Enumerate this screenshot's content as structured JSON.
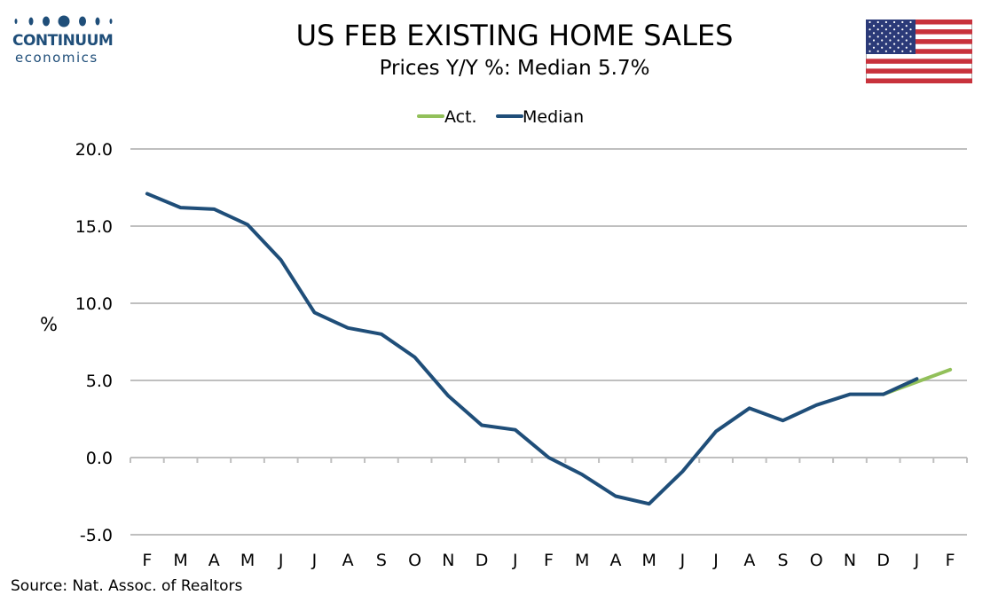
{
  "header": {
    "logo_line1": "CONTINUUM",
    "logo_line2": "economics",
    "flag": "us-flag"
  },
  "footer": {
    "source": "Source: Nat. Assoc. of Realtors"
  },
  "colors": {
    "median": "#1f4e79",
    "actual": "#92c05a",
    "grid": "#bfbfbf",
    "logo": "#1f4e79"
  },
  "chart_data": {
    "type": "line",
    "title": "US FEB EXISTING HOME SALES",
    "subtitle": "Prices Y/Y %: Median 5.7%",
    "ylabel": "%",
    "xlabel": "",
    "ylim": [
      -5,
      20
    ],
    "yticks": [
      "20.0",
      "15.0",
      "10.0",
      "5.0",
      "0.0",
      "-5.0"
    ],
    "ytick_values": [
      20,
      15,
      10,
      5,
      0,
      -5
    ],
    "grid": true,
    "legend_position": "top-center",
    "categories": [
      "F",
      "M",
      "A",
      "M",
      "J",
      "J",
      "A",
      "S",
      "O",
      "N",
      "D",
      "J",
      "F",
      "M",
      "A",
      "M",
      "J",
      "J",
      "A",
      "S",
      "O",
      "N",
      "D",
      "J",
      "F"
    ],
    "series": [
      {
        "name": "Act.",
        "color": "#92c05a",
        "values": [
          null,
          null,
          null,
          null,
          null,
          null,
          null,
          null,
          null,
          null,
          null,
          null,
          null,
          null,
          null,
          null,
          null,
          null,
          null,
          null,
          null,
          null,
          4.1,
          4.9,
          5.7
        ]
      },
      {
        "name": "Median",
        "color": "#1f4e79",
        "values": [
          17.1,
          16.2,
          16.1,
          15.1,
          12.8,
          9.4,
          8.4,
          8.0,
          6.5,
          4.0,
          2.1,
          1.8,
          0.0,
          -1.1,
          -2.5,
          -3.0,
          -0.9,
          1.7,
          3.2,
          2.4,
          3.4,
          4.1,
          4.1,
          5.1,
          null
        ]
      }
    ]
  }
}
